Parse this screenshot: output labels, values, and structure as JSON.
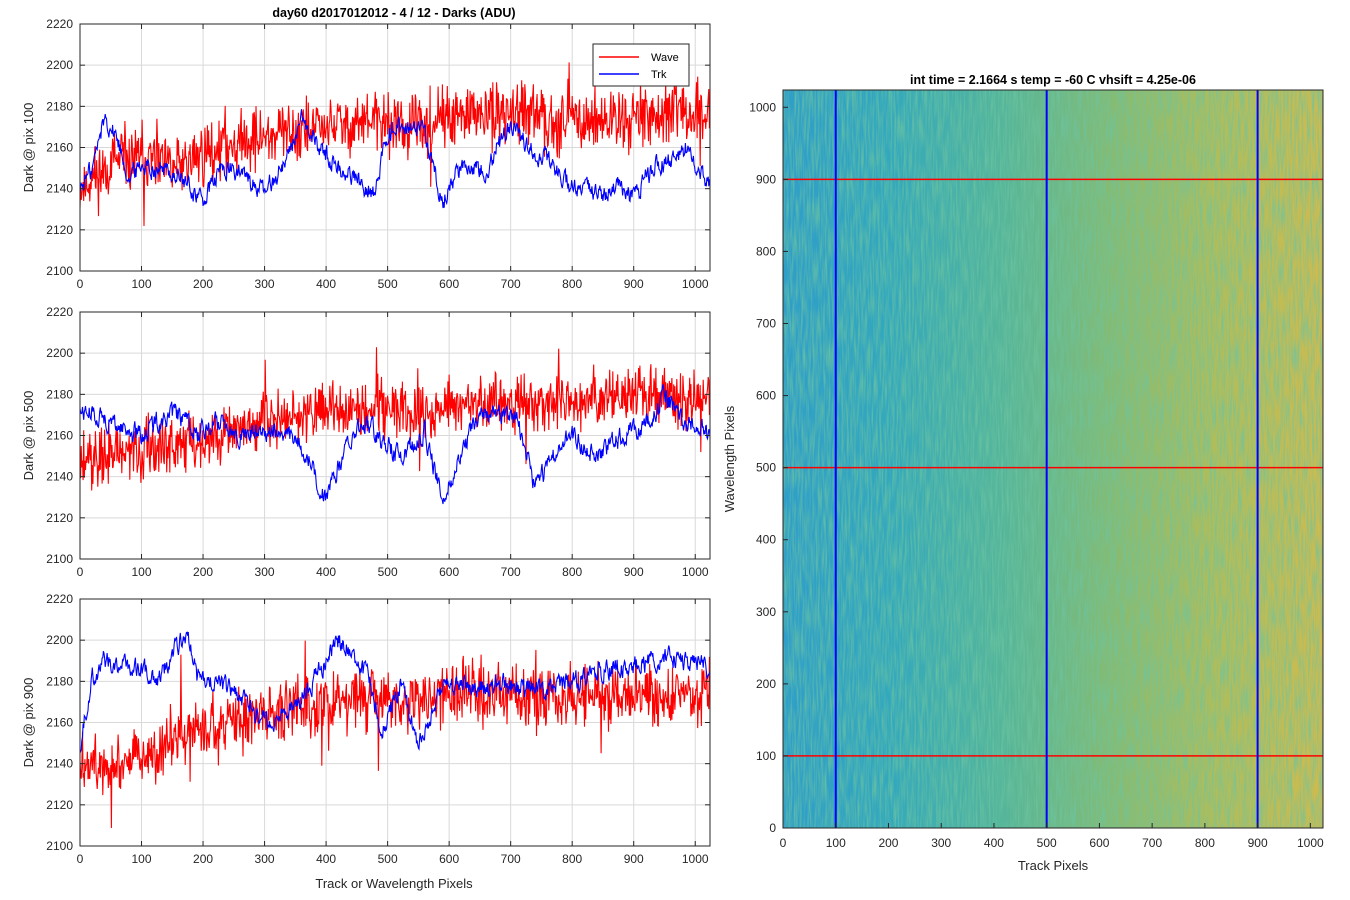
{
  "figure": {
    "suptitle": "day60 d2017012012 - 4 / 12 - Darks (ADU)",
    "x_label": "Track or Wavelength Pixels",
    "legend": [
      "Wave",
      "Trk"
    ],
    "colors": {
      "wave": "#ff0000",
      "trk": "#0000ff",
      "grid": "#d9d9d9",
      "axis": "#262626"
    }
  },
  "chart_data": [
    {
      "type": "line",
      "ylabel": "Dark @ pix 100",
      "xlim": [
        0,
        1024
      ],
      "ylim": [
        2100,
        2220
      ],
      "xticks": [
        0,
        100,
        200,
        300,
        400,
        500,
        600,
        700,
        800,
        900,
        1000
      ],
      "yticks": [
        2100,
        2120,
        2140,
        2160,
        2180,
        2200,
        2220
      ],
      "grid": true,
      "legend_location": "top-right",
      "series": [
        {
          "name": "Wave",
          "color": "#ff0000",
          "x": [
            0,
            50,
            100,
            150,
            200,
            250,
            300,
            350,
            400,
            450,
            500,
            550,
            600,
            650,
            700,
            750,
            800,
            850,
            900,
            950,
            1024
          ],
          "values": [
            2140,
            2152,
            2155,
            2150,
            2157,
            2163,
            2165,
            2168,
            2170,
            2172,
            2172,
            2170,
            2174,
            2175,
            2176,
            2174,
            2175,
            2173,
            2176,
            2176,
            2176
          ],
          "noise": 12
        },
        {
          "name": "Trk",
          "color": "#0000ff",
          "x": [
            0,
            20,
            40,
            60,
            80,
            100,
            130,
            160,
            200,
            230,
            260,
            300,
            330,
            360,
            390,
            420,
            450,
            480,
            500,
            520,
            560,
            590,
            620,
            660,
            700,
            730,
            760,
            800,
            840,
            880,
            900,
            930,
            960,
            990,
            1024
          ],
          "values": [
            2140,
            2150,
            2175,
            2165,
            2145,
            2152,
            2150,
            2146,
            2134,
            2150,
            2148,
            2138,
            2152,
            2172,
            2160,
            2150,
            2145,
            2138,
            2168,
            2170,
            2166,
            2134,
            2152,
            2150,
            2172,
            2160,
            2155,
            2140,
            2138,
            2140,
            2135,
            2150,
            2154,
            2160,
            2140
          ],
          "noise": 5
        }
      ]
    },
    {
      "type": "line",
      "ylabel": "Dark @ pix 500",
      "xlim": [
        0,
        1024
      ],
      "ylim": [
        2100,
        2220
      ],
      "xticks": [
        0,
        100,
        200,
        300,
        400,
        500,
        600,
        700,
        800,
        900,
        1000
      ],
      "yticks": [
        2100,
        2120,
        2140,
        2160,
        2180,
        2200,
        2220
      ],
      "grid": true,
      "series": [
        {
          "name": "Wave",
          "color": "#ff0000",
          "x": [
            0,
            50,
            100,
            150,
            200,
            250,
            300,
            350,
            400,
            450,
            500,
            550,
            600,
            650,
            700,
            750,
            800,
            850,
            900,
            950,
            1024
          ],
          "values": [
            2148,
            2150,
            2152,
            2155,
            2158,
            2162,
            2166,
            2170,
            2172,
            2173,
            2174,
            2172,
            2174,
            2175,
            2176,
            2175,
            2176,
            2178,
            2180,
            2178,
            2177
          ],
          "noise": 11
        },
        {
          "name": "Trk",
          "color": "#0000ff",
          "x": [
            0,
            30,
            60,
            100,
            130,
            160,
            190,
            230,
            260,
            300,
            340,
            370,
            400,
            430,
            460,
            490,
            520,
            560,
            590,
            620,
            650,
            680,
            710,
            740,
            770,
            800,
            840,
            880,
            920,
            950,
            980,
            1024
          ],
          "values": [
            2172,
            2170,
            2165,
            2160,
            2168,
            2170,
            2160,
            2168,
            2160,
            2162,
            2160,
            2150,
            2128,
            2152,
            2168,
            2158,
            2150,
            2162,
            2128,
            2152,
            2170,
            2172,
            2168,
            2135,
            2150,
            2160,
            2150,
            2160,
            2165,
            2180,
            2168,
            2160
          ],
          "noise": 5
        }
      ]
    },
    {
      "type": "line",
      "ylabel": "Dark @ pix 900",
      "xlim": [
        0,
        1024
      ],
      "ylim": [
        2100,
        2220
      ],
      "xticks": [
        0,
        100,
        200,
        300,
        400,
        500,
        600,
        700,
        800,
        900,
        1000
      ],
      "yticks": [
        2100,
        2120,
        2140,
        2160,
        2180,
        2200,
        2220
      ],
      "grid": true,
      "series": [
        {
          "name": "Wave",
          "color": "#ff0000",
          "x": [
            0,
            50,
            100,
            150,
            200,
            250,
            300,
            350,
            400,
            450,
            500,
            550,
            600,
            650,
            700,
            750,
            800,
            850,
            900,
            950,
            1024
          ],
          "values": [
            2142,
            2140,
            2145,
            2150,
            2155,
            2160,
            2164,
            2168,
            2170,
            2172,
            2172,
            2172,
            2173,
            2174,
            2174,
            2173,
            2172,
            2174,
            2174,
            2172,
            2174
          ],
          "noise": 12
        },
        {
          "name": "Trk",
          "color": "#0000ff",
          "x": [
            0,
            20,
            40,
            70,
            100,
            130,
            160,
            175,
            190,
            230,
            270,
            300,
            340,
            380,
            420,
            440,
            470,
            490,
            520,
            550,
            590,
            640,
            700,
            750,
            800,
            850,
            900,
            950,
            1000,
            1024
          ],
          "values": [
            2150,
            2182,
            2190,
            2188,
            2185,
            2182,
            2198,
            2205,
            2182,
            2178,
            2170,
            2160,
            2165,
            2180,
            2200,
            2195,
            2180,
            2155,
            2178,
            2150,
            2178,
            2178,
            2178,
            2176,
            2180,
            2185,
            2188,
            2192,
            2190,
            2186
          ],
          "noise": 5
        }
      ]
    },
    {
      "type": "heatmap",
      "title": "int time = 2.1664 s    temp = -60 C    vhsift = 4.25e-06",
      "xlabel": "Track Pixels",
      "ylabel": "Wavelength Pixels",
      "xlim": [
        0,
        1024
      ],
      "ylim": [
        0,
        1024
      ],
      "xticks": [
        0,
        100,
        200,
        300,
        400,
        500,
        600,
        700,
        800,
        900,
        1000
      ],
      "yticks": [
        0,
        100,
        200,
        300,
        400,
        500,
        600,
        700,
        800,
        900,
        1000
      ],
      "colormap": "parula",
      "colors": [
        "#2f9ec9",
        "#33a8bd",
        "#53b59b",
        "#83bb74",
        "#b0bd5a",
        "#cdbb50"
      ],
      "vertical_lines": [
        100,
        500,
        900
      ],
      "horizontal_lines": [
        100,
        500,
        900
      ],
      "vertical_line_color": "#0000ff",
      "horizontal_line_color": "#ff0000"
    }
  ]
}
